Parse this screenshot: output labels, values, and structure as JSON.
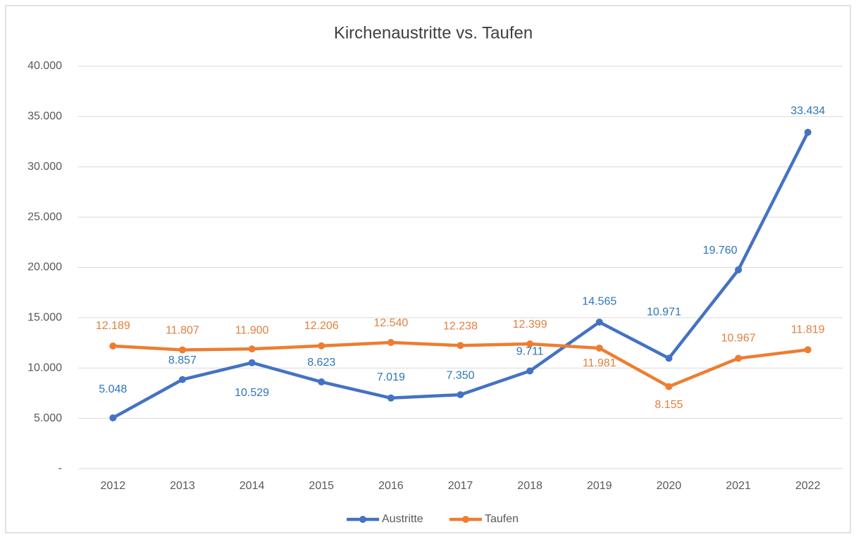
{
  "chart_data": {
    "type": "line",
    "title": "Kirchenaustritte vs. Taufen",
    "categories": [
      "2012",
      "2013",
      "2014",
      "2015",
      "2016",
      "2017",
      "2018",
      "2019",
      "2020",
      "2021",
      "2022"
    ],
    "series": [
      {
        "name": "Austritte",
        "color": "#4472c4",
        "values": [
          5048,
          8857,
          10529,
          8623,
          7019,
          7350,
          9711,
          14565,
          10971,
          19760,
          33434
        ],
        "value_labels": [
          "5.048",
          "8.857",
          "10.529",
          "8.623",
          "7.019",
          "7.350",
          "9.711",
          "14.565",
          "10.971",
          "19.760",
          "33.434"
        ]
      },
      {
        "name": "Taufen",
        "color": "#ed7d31",
        "values": [
          12189,
          11807,
          11900,
          12206,
          12540,
          12238,
          12399,
          11981,
          8155,
          10967,
          11819
        ],
        "value_labels": [
          "12.189",
          "11.807",
          "11.900",
          "12.206",
          "12.540",
          "12.238",
          "12.399",
          "11.981",
          "8.155",
          "10.967",
          "11.819"
        ]
      }
    ],
    "ylim": [
      0,
      40000
    ],
    "yticks": [
      {
        "value": 0,
        "label": "-"
      },
      {
        "value": 5000,
        "label": "5.000"
      },
      {
        "value": 10000,
        "label": "10.000"
      },
      {
        "value": 15000,
        "label": "15.000"
      },
      {
        "value": 20000,
        "label": "20.000"
      },
      {
        "value": 25000,
        "label": "25.000"
      },
      {
        "value": 30000,
        "label": "30.000"
      },
      {
        "value": 35000,
        "label": "35.000"
      },
      {
        "value": 40000,
        "label": "40.000"
      }
    ],
    "grid": true,
    "legend": "bottom"
  }
}
